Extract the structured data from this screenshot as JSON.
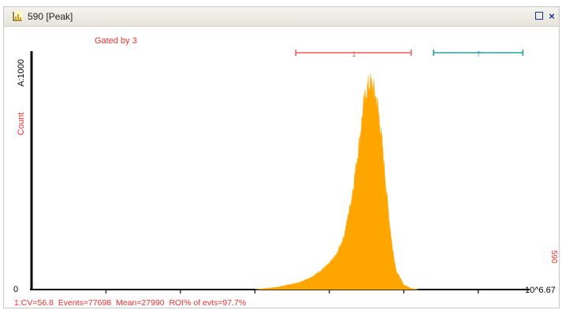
{
  "window": {
    "title": "590 [Peak]",
    "icons": [
      "histogram-icon",
      "restore-icon",
      "close-icon"
    ],
    "close_glyph": "×"
  },
  "plot": {
    "gate_label": "Gated by 3",
    "y_axis_label": "Count",
    "y_max_label": "A:1000",
    "y_min_label": "0",
    "x_max_label": "10^6.67",
    "x_param_label": "590",
    "stats_line": "1:CV=56.8  Events=77698  Mean=27990  ROI% of evts=97.7%",
    "colors": {
      "histogram": "#ffa500",
      "gate_text": "#f03030",
      "roi_1": "#f05a5a",
      "roi_7": "#2aa0a0",
      "axis": "#000000"
    }
  },
  "chart_data": {
    "type": "area",
    "x_scale": "log10",
    "xlim": [
      0,
      6.67
    ],
    "ylim": [
      0,
      1000
    ],
    "x": [
      3.0,
      3.3,
      3.6,
      3.8,
      4.0,
      4.1,
      4.2,
      4.3,
      4.4,
      4.45,
      4.5,
      4.55,
      4.6,
      4.65,
      4.7,
      4.75,
      4.8,
      4.85,
      4.9,
      5.0,
      5.1,
      5.2
    ],
    "values": [
      0,
      10,
      30,
      60,
      110,
      150,
      230,
      390,
      620,
      760,
      850,
      880,
      850,
      780,
      650,
      480,
      310,
      170,
      80,
      20,
      5,
      0
    ],
    "series": [
      {
        "name": "590",
        "values": [
          0,
          10,
          30,
          60,
          110,
          150,
          230,
          390,
          620,
          760,
          850,
          880,
          850,
          780,
          650,
          480,
          310,
          170,
          80,
          20,
          5,
          0
        ]
      }
    ],
    "regions": [
      {
        "name": "1",
        "x_start": 3.55,
        "x_end": 5.1,
        "color": "#f05a5a"
      },
      {
        "name": "7",
        "x_start": 5.4,
        "x_end": 6.6,
        "color": "#2aa0a0"
      }
    ]
  }
}
